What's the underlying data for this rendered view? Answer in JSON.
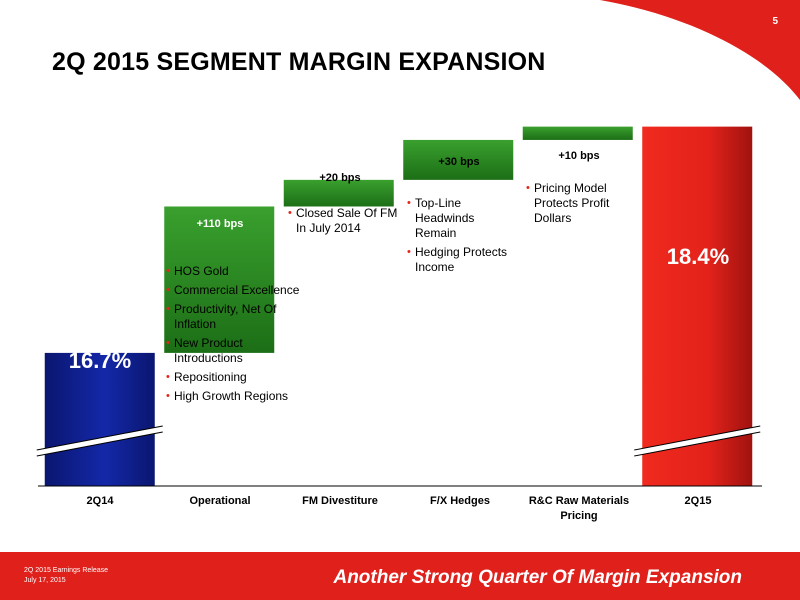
{
  "page_number": "5",
  "title": "2Q 2015 SEGMENT MARGIN EXPANSION",
  "footer": {
    "source_line1": "2Q 2015 Earnings Release",
    "source_line2": "July 17, 2015",
    "tagline": "Another Strong Quarter Of Margin Expansion"
  },
  "colors": {
    "start_bar": "#0f1d8a",
    "end_bar": "#e3221b",
    "delta_bar": "#2b8c22",
    "accent": "#e0201b"
  },
  "chart_data": {
    "type": "bar",
    "subtype": "waterfall",
    "categories": [
      "2Q14",
      "Operational",
      "FM Divestiture",
      "F/X Hedges",
      "R&C Raw Materials Pricing"
    ],
    "category_labels": [
      [
        "2Q14"
      ],
      [
        "Operational"
      ],
      [
        "FM Divestiture"
      ],
      [
        "F/X Hedges"
      ],
      [
        "R&C Raw Materials",
        "Pricing"
      ],
      [
        "2Q15"
      ]
    ],
    "start": {
      "category": "2Q14",
      "value": 16.7,
      "label": "16.7%"
    },
    "end": {
      "category": "2Q15",
      "value": 18.4,
      "label": "18.4%"
    },
    "steps": [
      {
        "category": "Operational",
        "value_bps": 110,
        "label": "+110 bps"
      },
      {
        "category": "FM Divestiture",
        "value_bps": 20,
        "label": "+20 bps"
      },
      {
        "category": "F/X Hedges",
        "value_bps": 30,
        "label": "+30 bps"
      },
      {
        "category": "R&C Raw Materials Pricing",
        "value_bps": 10,
        "label": "+10 bps"
      }
    ],
    "axis_break": true,
    "unit": "%",
    "ylim": [
      15.7,
      18.6
    ]
  },
  "bullets": {
    "operational": [
      "HOS Gold",
      "Commercial Excellence",
      "Productivity, Net Of Inflation",
      "New Product Introductions",
      "Repositioning",
      "High Growth Regions"
    ],
    "fm": [
      "Closed Sale Of FM In July 2014"
    ],
    "fx": [
      "Top-Line Headwinds Remain",
      "Hedging Protects Income"
    ],
    "rc": [
      "Pricing Model Protects Profit Dollars"
    ]
  }
}
